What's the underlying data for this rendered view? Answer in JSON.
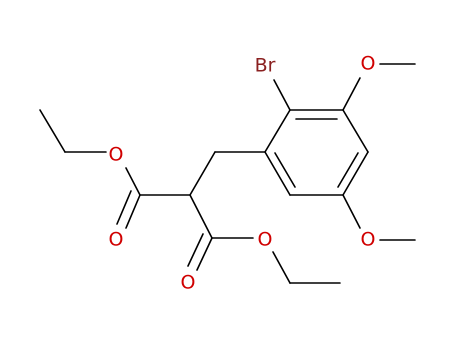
{
  "atoms": [
    {
      "label": "Br"
    },
    {
      "label": "O"
    },
    {
      "label": "O"
    },
    {
      "label": "O"
    },
    {
      "label": "O"
    },
    {
      "label": "O"
    },
    {
      "label": "O"
    }
  ]
}
